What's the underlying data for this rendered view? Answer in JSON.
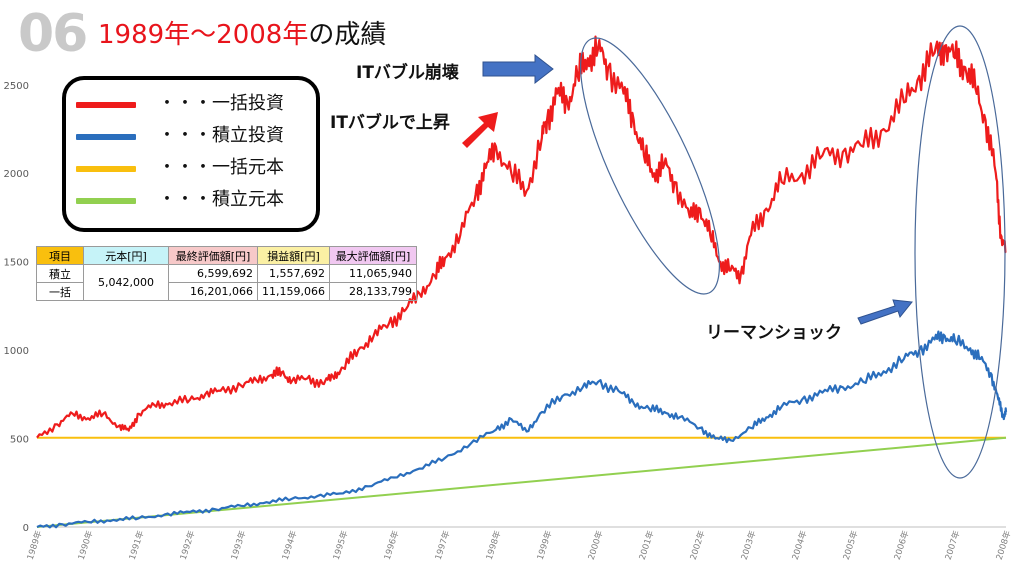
{
  "slide": {
    "number": "06",
    "title_red": "1989年〜2008年",
    "title_black": "の成績"
  },
  "legend": {
    "items": [
      {
        "label": "・・・一括投資",
        "color": "#ee1c1c"
      },
      {
        "label": "・・・積立投資",
        "color": "#2a6ebd"
      },
      {
        "label": "・・・一括元本",
        "color": "#f9bf0e"
      },
      {
        "label": "・・・積立元本",
        "color": "#92d050"
      }
    ]
  },
  "table": {
    "headers": [
      {
        "label": "項目",
        "color": "#f9bf0e"
      },
      {
        "label": "元本[円]",
        "color": "#c6f3f8"
      },
      {
        "label": "最終評価額[円]",
        "color": "#f7c9c9"
      },
      {
        "label": "損益額[円]",
        "color": "#fbf0a4"
      },
      {
        "label": "最大評価額[円]",
        "color": "#f1c8f1"
      }
    ],
    "principal": "5,042,000",
    "rows": [
      {
        "label": "積立",
        "final": "6,599,692",
        "profit": "1,557,692",
        "max": "11,065,940"
      },
      {
        "label": "一括",
        "final": "16,201,066",
        "profit": "11,159,066",
        "max": "28,133,799"
      }
    ]
  },
  "annotations": {
    "it_bubble_collapse": "ITバブル崩壊",
    "it_bubble_rise": "ITバブルで上昇",
    "lehman_shock": "リーマンショック"
  },
  "chart_data": {
    "type": "line",
    "title": "",
    "xlabel": "",
    "ylabel": "",
    "ylim": [
      0,
      2900
    ],
    "yticks": [
      0,
      500,
      1000,
      1500,
      2000,
      2500
    ],
    "xlim": [
      1989,
      2008
    ],
    "xticks": [
      "1989年",
      "1990年",
      "1991年",
      "1992年",
      "1993年",
      "1994年",
      "1995年",
      "1996年",
      "1997年",
      "1998年",
      "1999年",
      "2000年",
      "2001年",
      "2002年",
      "2003年",
      "2004年",
      "2005年",
      "2006年",
      "2007年",
      "2008年"
    ],
    "grid": false,
    "series": [
      {
        "name": "一括投資",
        "color": "#ee1c1c",
        "points": [
          [
            1989.0,
            505
          ],
          [
            1989.4,
            580
          ],
          [
            1989.7,
            640
          ],
          [
            1990.0,
            615
          ],
          [
            1990.3,
            640
          ],
          [
            1990.6,
            570
          ],
          [
            1990.8,
            545
          ],
          [
            1991.0,
            640
          ],
          [
            1991.3,
            690
          ],
          [
            1991.6,
            700
          ],
          [
            1992.0,
            720
          ],
          [
            1992.3,
            750
          ],
          [
            1992.6,
            770
          ],
          [
            1993.0,
            800
          ],
          [
            1993.3,
            830
          ],
          [
            1993.6,
            860
          ],
          [
            1993.8,
            875
          ],
          [
            1994.0,
            825
          ],
          [
            1994.3,
            840
          ],
          [
            1994.6,
            810
          ],
          [
            1994.8,
            850
          ],
          [
            1995.0,
            900
          ],
          [
            1995.3,
            1000
          ],
          [
            1995.6,
            1080
          ],
          [
            1995.9,
            1150
          ],
          [
            1996.2,
            1220
          ],
          [
            1996.5,
            1320
          ],
          [
            1996.8,
            1420
          ],
          [
            1997.0,
            1520
          ],
          [
            1997.3,
            1650
          ],
          [
            1997.6,
            1880
          ],
          [
            1997.8,
            2030
          ],
          [
            1998.0,
            2150
          ],
          [
            1998.3,
            2000
          ],
          [
            1998.6,
            1900
          ],
          [
            1998.9,
            2200
          ],
          [
            1999.0,
            2300
          ],
          [
            1999.2,
            2450
          ],
          [
            1999.4,
            2400
          ],
          [
            1999.6,
            2550
          ],
          [
            1999.8,
            2650
          ],
          [
            2000.0,
            2700
          ],
          [
            2000.2,
            2600
          ],
          [
            2000.5,
            2450
          ],
          [
            2000.7,
            2300
          ],
          [
            2000.9,
            2100
          ],
          [
            2001.1,
            2000
          ],
          [
            2001.3,
            2050
          ],
          [
            2001.5,
            1950
          ],
          [
            2001.8,
            1750
          ],
          [
            2002.0,
            1800
          ],
          [
            2002.2,
            1650
          ],
          [
            2002.4,
            1500
          ],
          [
            2002.6,
            1450
          ],
          [
            2002.8,
            1430
          ],
          [
            2003.0,
            1650
          ],
          [
            2003.3,
            1800
          ],
          [
            2003.6,
            1950
          ],
          [
            2004.0,
            2000
          ],
          [
            2004.4,
            2100
          ],
          [
            2004.8,
            2120
          ],
          [
            2005.2,
            2150
          ],
          [
            2005.6,
            2250
          ],
          [
            2006.0,
            2400
          ],
          [
            2006.3,
            2550
          ],
          [
            2006.6,
            2680
          ],
          [
            2006.8,
            2720
          ],
          [
            2007.0,
            2650
          ],
          [
            2007.2,
            2600
          ],
          [
            2007.4,
            2480
          ],
          [
            2007.6,
            2300
          ],
          [
            2007.8,
            2000
          ],
          [
            2007.9,
            1650
          ],
          [
            2008.0,
            1550
          ]
        ]
      },
      {
        "name": "積立投資",
        "color": "#2a6ebd",
        "points": [
          [
            1989.0,
            0
          ],
          [
            1989.5,
            15
          ],
          [
            1990.0,
            28
          ],
          [
            1990.5,
            40
          ],
          [
            1991.0,
            50
          ],
          [
            1991.5,
            70
          ],
          [
            1992.0,
            85
          ],
          [
            1992.5,
            100
          ],
          [
            1993.0,
            120
          ],
          [
            1993.5,
            140
          ],
          [
            1994.0,
            160
          ],
          [
            1994.5,
            175
          ],
          [
            1995.0,
            190
          ],
          [
            1995.5,
            230
          ],
          [
            1996.0,
            280
          ],
          [
            1996.5,
            330
          ],
          [
            1997.0,
            390
          ],
          [
            1997.5,
            470
          ],
          [
            1998.0,
            550
          ],
          [
            1998.3,
            610
          ],
          [
            1998.6,
            540
          ],
          [
            1998.9,
            650
          ],
          [
            1999.3,
            740
          ],
          [
            1999.7,
            790
          ],
          [
            2000.0,
            820
          ],
          [
            2000.4,
            770
          ],
          [
            2000.7,
            700
          ],
          [
            2001.0,
            670
          ],
          [
            2001.3,
            650
          ],
          [
            2001.6,
            620
          ],
          [
            2002.0,
            560
          ],
          [
            2002.3,
            500
          ],
          [
            2002.6,
            490
          ],
          [
            2003.0,
            560
          ],
          [
            2003.3,
            620
          ],
          [
            2003.6,
            680
          ],
          [
            2004.0,
            720
          ],
          [
            2004.4,
            760
          ],
          [
            2004.8,
            790
          ],
          [
            2005.2,
            820
          ],
          [
            2005.6,
            880
          ],
          [
            2006.0,
            950
          ],
          [
            2006.3,
            1000
          ],
          [
            2006.6,
            1060
          ],
          [
            2006.8,
            1080
          ],
          [
            2007.0,
            1050
          ],
          [
            2007.3,
            1010
          ],
          [
            2007.5,
            950
          ],
          [
            2007.7,
            870
          ],
          [
            2007.85,
            720
          ],
          [
            2007.95,
            620
          ],
          [
            2008.0,
            650
          ]
        ]
      },
      {
        "name": "一括元本",
        "color": "#f9bf0e",
        "points": [
          [
            1989.0,
            504
          ],
          [
            2008.0,
            504
          ]
        ]
      },
      {
        "name": "積立元本",
        "color": "#92d050",
        "points": [
          [
            1989.0,
            0
          ],
          [
            2008.0,
            504
          ]
        ]
      }
    ]
  }
}
